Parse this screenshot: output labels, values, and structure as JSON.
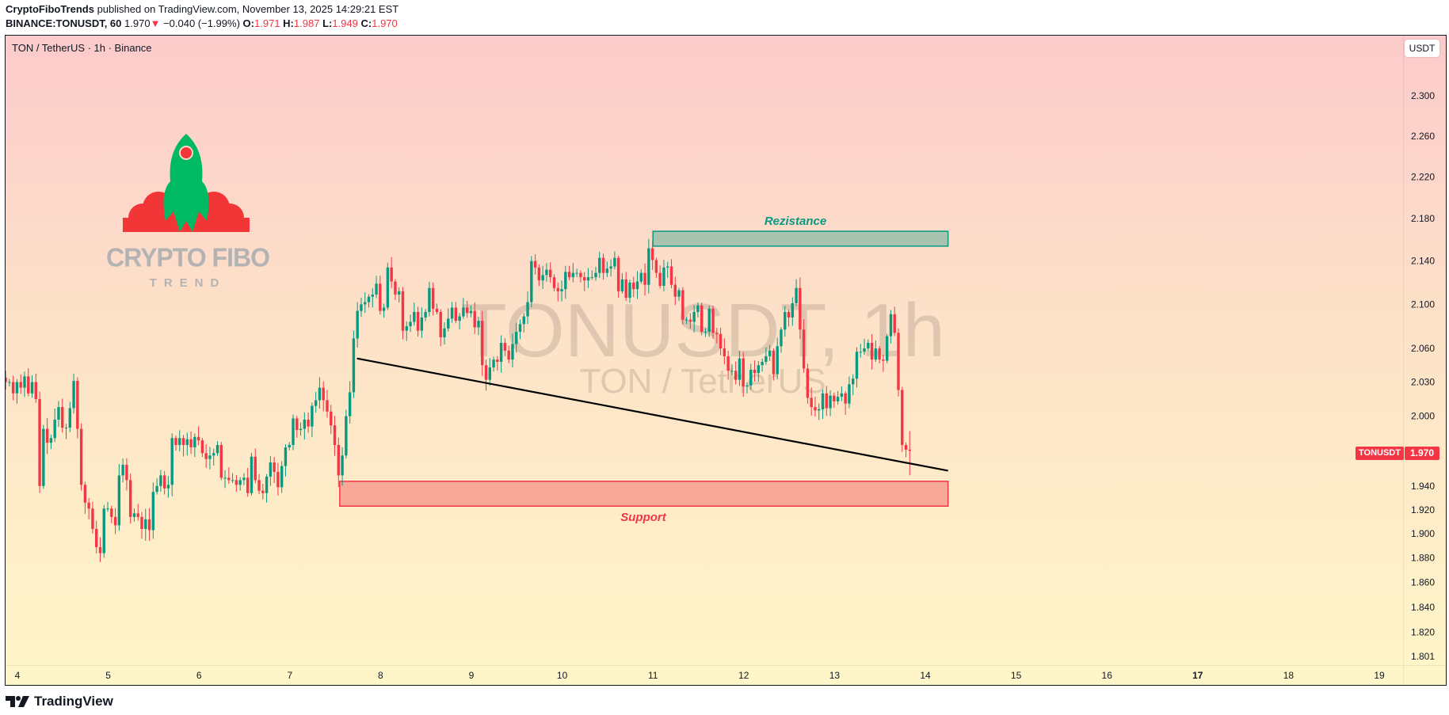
{
  "header": {
    "publisher": "CryptoFiboTrends",
    "published_text": "published on TradingView.com, November 13, 2025 14:29:21 EST",
    "symbol_line": "BINANCE:TONUSDT, 60",
    "last_price": "1.970",
    "change": "−0.040 (−1.99%)",
    "change_icon": "triangle-down-icon",
    "o_label": "O:",
    "o": "1.971",
    "h_label": "H:",
    "h": "1.987",
    "l_label": "L:",
    "l": "1.949",
    "c_label": "C:",
    "c": "1.970"
  },
  "pane_title": "TON / TetherUS · 1h · Binance",
  "currency_button": "USDT",
  "watermark": {
    "line1": "TONUSDT, 1h",
    "line2": "TON / TetherUS"
  },
  "logo": {
    "line1": "CRYPTO FIBO",
    "line2": "TREND"
  },
  "annotations": {
    "resistance": "Rezistance",
    "support": "Support"
  },
  "price_tag": {
    "symbol": "TONUSDT",
    "value": "1.970"
  },
  "footer": {
    "brand": "TradingView"
  },
  "colors": {
    "up": "#089981",
    "down": "#f23645",
    "resistance_fill": "#a8c4b0",
    "support_fill": "#f7a899",
    "trendline": "#000000"
  },
  "chart_data": {
    "type": "candlestick",
    "interval": "1h",
    "y_scale": "log",
    "ylim": [
      1.795,
      2.33
    ],
    "y_ticks": [
      "2.300",
      "2.260",
      "2.220",
      "2.180",
      "2.140",
      "2.100",
      "2.060",
      "2.030",
      "2.000",
      "1.940",
      "1.920",
      "1.900",
      "1.880",
      "1.860",
      "1.840",
      "1.820",
      "1.801"
    ],
    "x_ticks": [
      "4",
      "5",
      "6",
      "7",
      "8",
      "9",
      "10",
      "11",
      "12",
      "13",
      "14",
      "15",
      "16",
      "17",
      "18",
      "19"
    ],
    "xlim_days": [
      3.87,
      19.3
    ],
    "first_candle_day": 3.87,
    "closes": [
      2.03,
      2.03,
      2.02,
      2.03,
      2.025,
      2.035,
      2.02,
      2.03,
      2.015,
      1.94,
      1.989,
      1.977,
      1.981,
      1.997,
      2.008,
      1.99,
      1.99,
      2.007,
      2.031,
      1.989,
      1.941,
      1.926,
      1.921,
      1.904,
      1.889,
      1.884,
      1.921,
      1.921,
      1.914,
      1.907,
      1.949,
      1.958,
      1.945,
      1.914,
      1.917,
      1.914,
      1.904,
      1.912,
      1.903,
      1.935,
      1.94,
      1.949,
      1.938,
      1.941,
      1.981,
      1.975,
      1.981,
      1.975,
      1.98,
      1.973,
      1.982,
      1.979,
      1.968,
      1.963,
      1.966,
      1.968,
      1.975,
      1.947,
      1.947,
      1.945,
      1.945,
      1.941,
      1.945,
      1.947,
      1.934,
      1.965,
      1.945,
      1.936,
      1.934,
      1.948,
      1.96,
      1.952,
      1.939,
      1.957,
      1.973,
      1.975,
      1.998,
      1.988,
      1.989,
      1.997,
      1.991,
      2.009,
      2.014,
      2.025,
      2.014,
      2.004,
      1.992,
      1.975,
      1.949,
      1.966,
      2.0,
      2.021,
      2.069,
      2.094,
      2.1,
      2.102,
      2.107,
      2.109,
      2.119,
      2.094,
      2.097,
      2.134,
      2.121,
      2.109,
      2.112,
      2.076,
      2.08,
      2.084,
      2.093,
      2.076,
      2.088,
      2.093,
      2.115,
      2.096,
      2.093,
      2.07,
      2.078,
      2.087,
      2.097,
      2.085,
      2.089,
      2.097,
      2.092,
      2.094,
      2.079,
      2.085,
      2.045,
      2.032,
      2.043,
      2.05,
      2.048,
      2.065,
      2.058,
      2.05,
      2.064,
      2.075,
      2.082,
      2.089,
      2.102,
      2.14,
      2.134,
      2.122,
      2.127,
      2.132,
      2.125,
      2.115,
      2.112,
      2.114,
      2.13,
      2.125,
      2.129,
      2.129,
      2.125,
      2.122,
      2.125,
      2.125,
      2.129,
      2.143,
      2.129,
      2.133,
      2.135,
      2.143,
      2.112,
      2.123,
      2.106,
      2.12,
      2.114,
      2.121,
      2.129,
      2.118,
      2.152,
      2.141,
      2.129,
      2.117,
      2.134,
      2.135,
      2.118,
      2.107,
      2.113,
      2.086,
      2.086,
      2.084,
      2.093,
      2.099,
      2.075,
      2.075,
      2.096,
      2.074,
      2.073,
      2.06,
      2.053,
      2.04,
      2.04,
      2.032,
      2.051,
      2.026,
      2.027,
      2.041,
      2.038,
      2.045,
      2.048,
      2.053,
      2.058,
      2.037,
      2.062,
      2.077,
      2.093,
      2.088,
      2.101,
      2.115,
      2.077,
      2.042,
      2.016,
      2.008,
      2.005,
      2.006,
      2.02,
      2.007,
      2.018,
      2.013,
      2.017,
      2.02,
      2.011,
      2.028,
      2.033,
      2.057,
      2.057,
      2.06,
      2.065,
      2.05,
      2.06,
      2.05,
      2.049,
      2.071,
      2.091,
      2.074,
      2.023,
      1.975,
      1.971,
      1.97
    ],
    "last_candle": {
      "open": 1.971,
      "high": 1.987,
      "low": 1.949,
      "close": 1.97
    },
    "resistance_zone": {
      "from_day": 11.0,
      "to_day": 14.25,
      "low": 2.154,
      "high": 2.168
    },
    "support_zone": {
      "from_day": 7.55,
      "to_day": 14.25,
      "low": 1.923,
      "high": 1.944
    },
    "trendline": {
      "start": {
        "day": 7.74,
        "price": 2.051
      },
      "end": {
        "day": 14.25,
        "price": 1.953
      }
    }
  }
}
